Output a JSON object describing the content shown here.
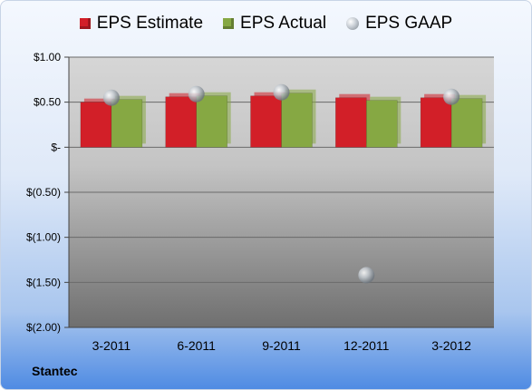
{
  "legend": {
    "estimate_label": "EPS Estimate",
    "actual_label": "EPS Actual",
    "gaap_label": "EPS GAAP"
  },
  "company": "Stantec",
  "colors": {
    "estimate": "#d21f28",
    "actual": "#86a843",
    "gaap": "#b8bec5"
  },
  "chart_data": {
    "type": "bar",
    "categories": [
      "3-2011",
      "6-2011",
      "9-2011",
      "12-2011",
      "3-2012"
    ],
    "series": [
      {
        "name": "EPS Estimate",
        "values": [
          0.5,
          0.56,
          0.57,
          0.55,
          0.55
        ]
      },
      {
        "name": "EPS Actual",
        "values": [
          0.53,
          0.57,
          0.6,
          0.52,
          0.54
        ]
      },
      {
        "name": "EPS GAAP",
        "values": [
          0.55,
          0.59,
          0.61,
          -1.42,
          0.56
        ],
        "marker": "sphere"
      }
    ],
    "ylim": [
      -2.0,
      1.0
    ],
    "yticks": [
      1.0,
      0.5,
      0,
      -0.5,
      -1.0,
      -1.5,
      -2.0
    ],
    "ytick_labels": [
      "$1.00",
      "$0.50",
      "$-",
      "$(0.50)",
      "$(1.00)",
      "$(1.50)",
      "$(2.00)"
    ],
    "grid": true,
    "legend_position": "top"
  }
}
